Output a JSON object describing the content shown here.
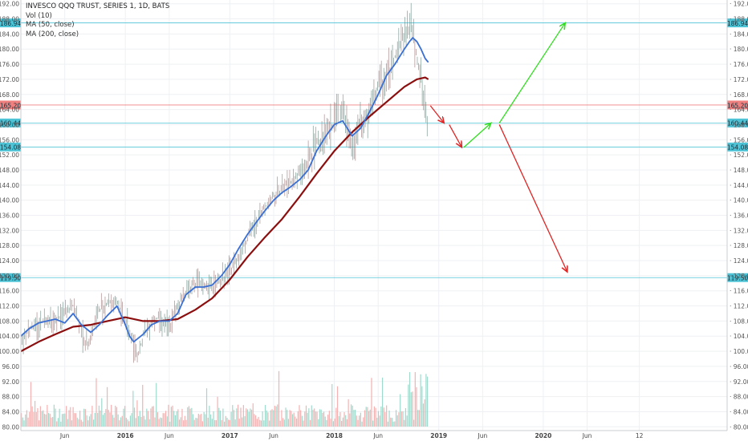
{
  "chart_data": {
    "type": "line",
    "title": "INVESCO QQQ TRUST, SERIES 1, 1D, BATS",
    "legend": [
      "Vol (10)",
      "MA (50, close)",
      "MA (200, close)"
    ],
    "y_ticks": [
      80,
      84,
      88,
      92,
      96,
      100,
      104,
      108,
      112,
      116,
      120,
      124,
      128,
      132,
      136,
      140,
      144,
      148,
      152,
      156,
      160,
      164,
      168,
      172,
      176,
      180,
      184,
      188,
      192
    ],
    "ylim": [
      79,
      193
    ],
    "x_ticks": [
      {
        "label": "Jun",
        "t": 2015.42
      },
      {
        "label": "2016",
        "t": 2016.0
      },
      {
        "label": "Jun",
        "t": 2016.42
      },
      {
        "label": "2017",
        "t": 2017.0
      },
      {
        "label": "Jun",
        "t": 2017.42
      },
      {
        "label": "2018",
        "t": 2018.0
      },
      {
        "label": "Jun",
        "t": 2018.42
      },
      {
        "label": "2019",
        "t": 2019.0
      },
      {
        "label": "Jun",
        "t": 2019.42
      },
      {
        "label": "2020",
        "t": 2020.0
      },
      {
        "label": "Jun",
        "t": 2020.42
      },
      {
        "label": "12",
        "t": 2020.92
      }
    ],
    "xlim": [
      2015.0,
      2021.76
    ],
    "price_series": {
      "name": "QQQ close",
      "x": [
        2015.0,
        2015.08,
        2015.17,
        2015.25,
        2015.33,
        2015.42,
        2015.5,
        2015.58,
        2015.62,
        2015.67,
        2015.75,
        2015.83,
        2015.92,
        2016.0,
        2016.08,
        2016.12,
        2016.17,
        2016.25,
        2016.33,
        2016.42,
        2016.5,
        2016.58,
        2016.67,
        2016.75,
        2016.83,
        2016.92,
        2017.0,
        2017.08,
        2017.17,
        2017.25,
        2017.33,
        2017.42,
        2017.5,
        2017.58,
        2017.67,
        2017.75,
        2017.83,
        2017.92,
        2018.0,
        2018.04,
        2018.08,
        2018.17,
        2018.25,
        2018.33,
        2018.42,
        2018.5,
        2018.58,
        2018.67,
        2018.72,
        2018.75,
        2018.79,
        2018.83,
        2018.87,
        2018.9
      ],
      "values": [
        103,
        106,
        107,
        109,
        108,
        110,
        112,
        106,
        101,
        104,
        111,
        113,
        113,
        108,
        102,
        99,
        104,
        108,
        109,
        106,
        112,
        116,
        118,
        117,
        117,
        119,
        121,
        125,
        130,
        134,
        138,
        141,
        143,
        145,
        147,
        150,
        155,
        158,
        160,
        166,
        163,
        154,
        160,
        162,
        170,
        173,
        178,
        184,
        186,
        185,
        178,
        172,
        163,
        160
      ]
    },
    "ma50_series": {
      "name": "MA (50, close)",
      "color": "#3a6fd3",
      "x": [
        2015.0,
        2015.08,
        2015.17,
        2015.25,
        2015.33,
        2015.42,
        2015.5,
        2015.58,
        2015.67,
        2015.75,
        2015.83,
        2015.92,
        2016.0,
        2016.04,
        2016.08,
        2016.17,
        2016.25,
        2016.33,
        2016.42,
        2016.5,
        2016.58,
        2016.67,
        2016.75,
        2016.83,
        2016.92,
        2017.0,
        2017.08,
        2017.17,
        2017.25,
        2017.33,
        2017.42,
        2017.5,
        2017.58,
        2017.67,
        2017.75,
        2017.83,
        2017.92,
        2018.0,
        2018.08,
        2018.17,
        2018.25,
        2018.33,
        2018.42,
        2018.5,
        2018.58,
        2018.67,
        2018.72,
        2018.75,
        2018.79,
        2018.83,
        2018.87,
        2018.9
      ],
      "values": [
        104,
        106,
        107.5,
        108,
        108.5,
        107.5,
        110,
        107,
        105,
        107,
        109.5,
        112,
        107,
        104,
        102.5,
        104.5,
        107,
        108,
        108,
        110,
        115,
        117,
        117,
        117.5,
        120,
        123,
        127,
        131,
        134,
        137,
        140,
        142,
        143.5,
        145.5,
        148,
        153,
        157,
        160,
        161,
        157,
        159,
        163,
        168,
        173,
        176,
        180,
        182,
        183,
        182,
        180,
        177.5,
        176.5
      ]
    },
    "ma200_series": {
      "name": "MA (200, close)",
      "color": "#8b0f0f",
      "x": [
        2015.0,
        2015.17,
        2015.33,
        2015.5,
        2015.67,
        2015.83,
        2016.0,
        2016.17,
        2016.33,
        2016.5,
        2016.67,
        2016.83,
        2017.0,
        2017.17,
        2017.33,
        2017.5,
        2017.67,
        2017.83,
        2018.0,
        2018.17,
        2018.33,
        2018.5,
        2018.67,
        2018.79,
        2018.87,
        2018.9
      ],
      "values": [
        100,
        102.5,
        104.5,
        106.5,
        107,
        108,
        109,
        108,
        108,
        108.5,
        111,
        114,
        119,
        125,
        130,
        135,
        141,
        147,
        153,
        158,
        162,
        166,
        170,
        172,
        172.5,
        172
      ]
    },
    "horizontal_levels": [
      {
        "label": "186.94",
        "value": 186.94,
        "color": "#4fc3d6"
      },
      {
        "label": "165.20",
        "value": 165.2,
        "color": "#f08080"
      },
      {
        "label": "160.44",
        "value": 160.44,
        "color": "#4fc3d6"
      },
      {
        "label": "154.08",
        "value": 154.08,
        "color": "#4fc3d6"
      },
      {
        "label": "119.50",
        "value": 119.5,
        "color": "#4fc3d6"
      }
    ],
    "projections": [
      {
        "color": "#e02424",
        "from": [
          2018.92,
          165.0
        ],
        "to": [
          2019.05,
          160.44
        ]
      },
      {
        "color": "#e02424",
        "from": [
          2019.1,
          160.0
        ],
        "to": [
          2019.22,
          154.0
        ]
      },
      {
        "color": "#33dd22",
        "from": [
          2019.24,
          154.0
        ],
        "to": [
          2019.5,
          160.44
        ]
      },
      {
        "color": "#33dd22",
        "from": [
          2019.58,
          160.44
        ],
        "to": [
          2020.21,
          186.94
        ]
      },
      {
        "color": "#e02424",
        "from": [
          2019.58,
          160.0
        ],
        "to": [
          2020.23,
          121.0
        ]
      }
    ],
    "volume_note": "Vol (10)"
  }
}
